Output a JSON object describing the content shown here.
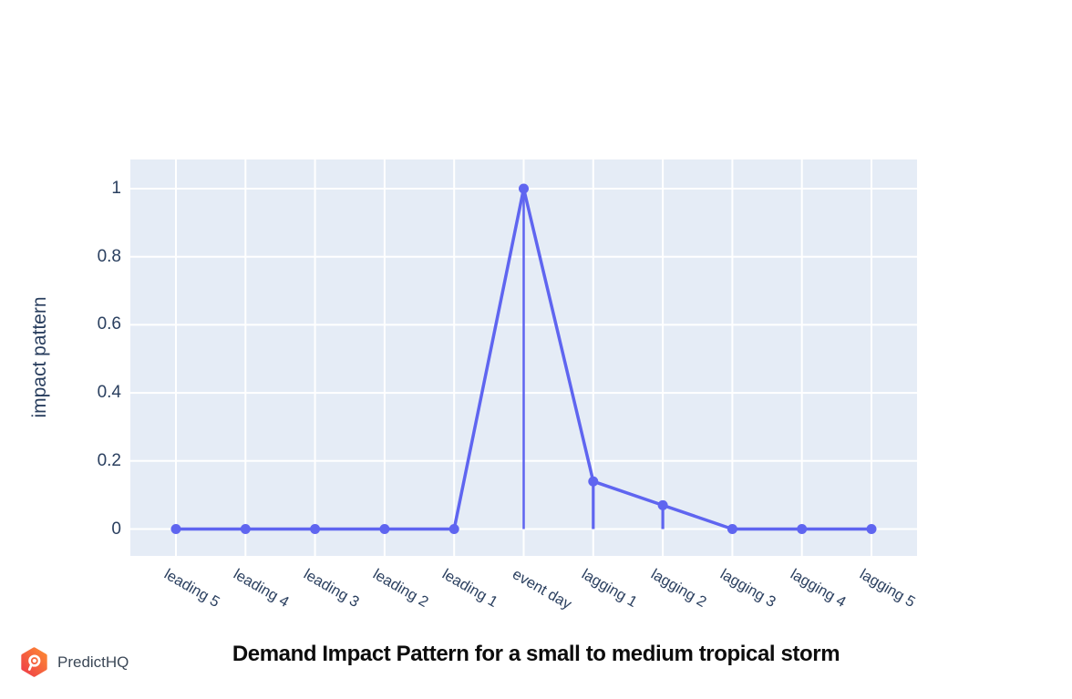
{
  "branding": {
    "logo_text": "PredictHQ"
  },
  "chart_data": {
    "type": "line",
    "title": "Demand Impact Pattern for a small to medium tropical storm",
    "xlabel": "",
    "ylabel": "impact pattern",
    "categories": [
      "leading 5",
      "leading 4",
      "leading 3",
      "leading 2",
      "leading 1",
      "event day",
      "lagging 1",
      "lagging 2",
      "lagging 3",
      "lagging 4",
      "lagging 5"
    ],
    "values": [
      0,
      0,
      0,
      0,
      0,
      1,
      0.14,
      0.07,
      0,
      0,
      0
    ],
    "stems": [
      {
        "category": "event day",
        "from": 0,
        "to": 1
      },
      {
        "category": "lagging 1",
        "from": 0,
        "to": 0.14
      },
      {
        "category": "lagging 2",
        "from": 0,
        "to": 0.07
      }
    ],
    "ytick_labels": [
      "0",
      "0.2",
      "0.4",
      "0.6",
      "0.8",
      "1"
    ],
    "ytick_values": [
      0,
      0.2,
      0.4,
      0.6,
      0.8,
      1
    ],
    "ylim": [
      -0.08,
      1.09
    ],
    "grid": true,
    "legend_position": "none",
    "marker": "circle",
    "colors": {
      "line": "#5F65F0",
      "plot_background": "#E5ECF6",
      "gridline": "#FFFFFF",
      "tick_text": "#2A3F5F",
      "title_text": "#0D0D0D",
      "logo_gradient_top": "#FD8A33",
      "logo_gradient_bottom": "#EE3D49",
      "logo_text": "#3C4857"
    }
  }
}
